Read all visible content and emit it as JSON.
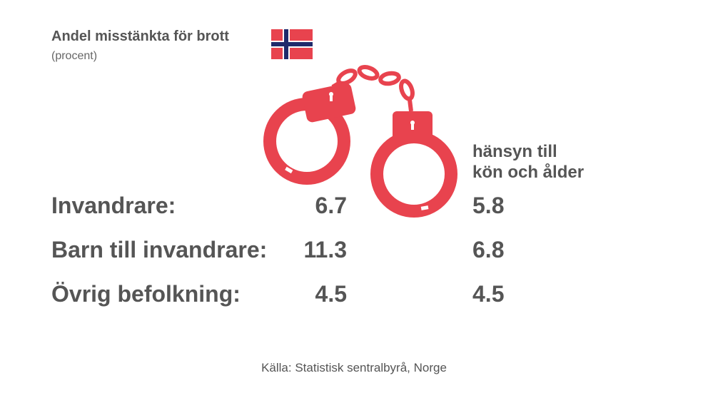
{
  "title": "Andel misstänkta för brott",
  "subtitle": "(procent)",
  "flag": {
    "country": "Norway",
    "red": "#e8434e",
    "blue": "#1f2a6b",
    "white": "#ffffff"
  },
  "icon": "handcuffs-icon",
  "accent_color": "#e8434e",
  "adjusted_label": [
    "hänsyn till",
    "kön och ålder"
  ],
  "rows": [
    {
      "label": "Invandrare:",
      "raw": "6.7",
      "adjusted": "5.8"
    },
    {
      "label": "Barn till invandrare:",
      "raw": "11.3",
      "adjusted": "6.8"
    },
    {
      "label": "Övrig befolkning:",
      "raw": "4.5",
      "adjusted": "4.5"
    }
  ],
  "source": "Källa: Statistisk sentralbyrå, Norge",
  "chart_data": {
    "type": "table",
    "title": "Andel misstänkta för brott",
    "subtitle": "(procent)",
    "categories": [
      "Invandrare:",
      "Barn till invandrare:",
      "Övrig befolkning:"
    ],
    "series": [
      {
        "values": [
          6.7,
          11.3,
          4.5
        ]
      },
      {
        "name": "hänsyn till kön och ålder",
        "values": [
          5.8,
          6.8,
          4.5
        ]
      }
    ]
  }
}
